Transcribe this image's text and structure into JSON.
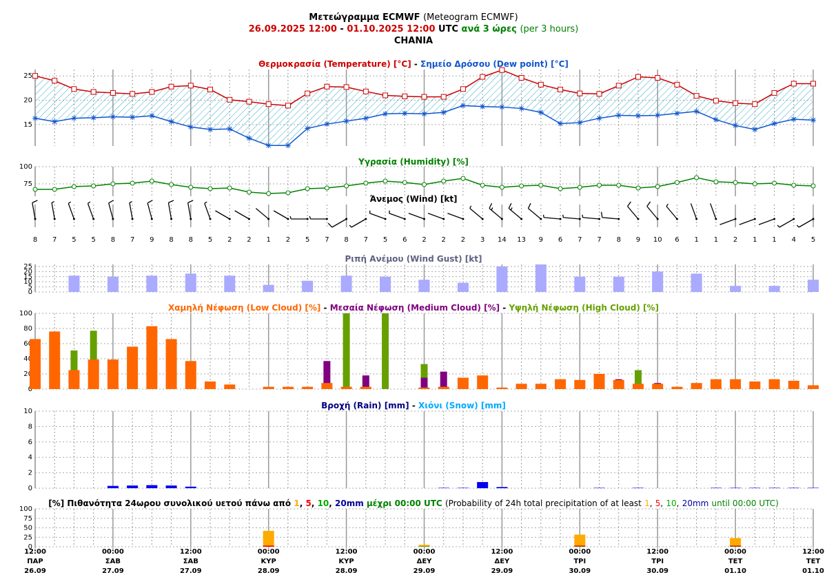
{
  "header": {
    "title": [
      "Μετεώγραμμα ECMWF",
      "(Meteogram ECMWF)"
    ],
    "period": [
      "26.09.2025 12:00",
      "-",
      "01.10.2025 12:00",
      "UTC",
      "ανά 3 ώρες",
      "(per 3 hours)"
    ],
    "location": "CHANIA"
  },
  "time_axis": {
    "xlim": [
      0,
      120
    ],
    "x": [
      0,
      3,
      6,
      9,
      12,
      15,
      18,
      21,
      24,
      27,
      30,
      33,
      36,
      39,
      42,
      45,
      48,
      51,
      54,
      57,
      60,
      63,
      66,
      69,
      72,
      75,
      78,
      81,
      84,
      87,
      90,
      93,
      96,
      99,
      102,
      105,
      108,
      111,
      114,
      117,
      120
    ],
    "xticks": [
      {
        "value": 0,
        "label": [
          "12:00",
          "ΠΑΡ",
          "26.09"
        ]
      },
      {
        "value": 12,
        "label": [
          "00:00",
          "ΣΑΒ",
          "27.09"
        ]
      },
      {
        "value": 24,
        "label": [
          "12:00",
          "ΣΑΒ",
          "27.09"
        ]
      },
      {
        "value": 36,
        "label": [
          "00:00",
          "ΚΥΡ",
          "28.09"
        ]
      },
      {
        "value": 48,
        "label": [
          "12:00",
          "ΚΥΡ",
          "28.09"
        ]
      },
      {
        "value": 60,
        "label": [
          "00:00",
          "ΔΕΥ",
          "29.09"
        ]
      },
      {
        "value": 72,
        "label": [
          "12:00",
          "ΔΕΥ",
          "29.09"
        ]
      },
      {
        "value": 84,
        "label": [
          "00:00",
          "ΤΡΙ",
          "30.09"
        ]
      },
      {
        "value": 96,
        "label": [
          "12:00",
          "ΤΡΙ",
          "30.09"
        ]
      },
      {
        "value": 108,
        "label": [
          "00:00",
          "ΤΕΤ",
          "01.10"
        ]
      },
      {
        "value": 120,
        "label": [
          "12:00",
          "ΤΕΤ",
          "01.10"
        ]
      }
    ]
  },
  "chart_data": [
    {
      "type": "line",
      "title": [
        "Θερμοκρασία (Temperature) [°C]",
        "-",
        "Σημείο Δρόσου (Dew point) [°C]"
      ],
      "ylim": [
        10.6,
        26.3
      ],
      "yticks": [
        15,
        20,
        25
      ],
      "fill_between": true,
      "series": [
        {
          "color": "#1155cc",
          "marker": "star",
          "values": [
            16.3,
            15.6,
            16.3,
            16.4,
            16.6,
            16.5,
            16.8,
            15.6,
            14.5,
            14,
            14.1,
            12.2,
            10.7,
            10.7,
            14.2,
            15.1,
            15.7,
            16.3,
            17.2,
            17.3,
            17.2,
            17.5,
            18.9,
            18.7,
            18.6,
            18.3,
            17.5,
            15.2,
            15.4,
            16.3,
            16.9,
            16.8,
            16.9,
            17.3,
            17.7,
            16,
            14.8,
            14,
            15.2,
            16.1,
            15.9
          ]
        },
        {
          "color": "#cc0000",
          "marker": "square",
          "values": [
            25,
            24,
            22.3,
            21.7,
            21.5,
            21.3,
            21.7,
            22.8,
            23,
            22.2,
            20.1,
            19.7,
            19.2,
            18.9,
            21.4,
            22.8,
            22.7,
            21.8,
            21,
            20.8,
            20.7,
            20.7,
            22.3,
            24.8,
            26.2,
            24.6,
            23.2,
            22.2,
            21.4,
            21.3,
            23,
            24.8,
            24.6,
            23.2,
            20.9,
            19.9,
            19.4,
            19.2,
            21.5,
            23.4,
            23.4
          ]
        }
      ]
    },
    {
      "type": "line",
      "title": [
        "Υγρασία (Humidity) [%]"
      ],
      "ylim": [
        57,
        100
      ],
      "yticks": [
        75,
        100
      ],
      "series": [
        {
          "color": "#008000",
          "marker": "circle",
          "values": [
            67,
            67,
            71,
            72,
            75,
            76,
            79,
            74,
            70,
            68,
            69,
            63,
            61,
            62,
            68,
            69,
            72,
            76,
            79,
            77,
            74,
            79,
            83,
            73,
            70,
            72,
            73,
            68,
            70,
            73,
            73,
            69,
            71,
            77,
            84,
            78,
            77,
            75,
            76,
            73,
            72
          ]
        }
      ]
    },
    {
      "type": "barbs",
      "title": [
        "Άνεμος (Wind) [kt]"
      ],
      "color": "#000000",
      "values": [
        8,
        7,
        5,
        5,
        8,
        7,
        9,
        8,
        8,
        5,
        2,
        2,
        1,
        2,
        5,
        7,
        8,
        7,
        5,
        6,
        2,
        2,
        2,
        3,
        14,
        13,
        9,
        6,
        7,
        7,
        8,
        9,
        10,
        6,
        1,
        1,
        2,
        1,
        1,
        4,
        5
      ],
      "directions": [
        350,
        350,
        340,
        340,
        345,
        350,
        345,
        350,
        350,
        340,
        300,
        300,
        310,
        300,
        270,
        270,
        240,
        240,
        290,
        290,
        290,
        290,
        290,
        310,
        310,
        310,
        310,
        275,
        275,
        275,
        275,
        320,
        320,
        320,
        340,
        340,
        250,
        250,
        250,
        240,
        240
      ]
    },
    {
      "type": "bar",
      "title": [
        "Ριπή Ανέμου (Wind Gust) [kt]"
      ],
      "ylim": [
        0,
        27
      ],
      "yticks": [
        0,
        5,
        10,
        15,
        20,
        25
      ],
      "color": "#aaaaff",
      "x": [
        6,
        12,
        18,
        24,
        30,
        36,
        42,
        48,
        54,
        60,
        66,
        72,
        78,
        84,
        90,
        96,
        102,
        108,
        114,
        120
      ],
      "values": [
        16,
        15,
        16,
        18,
        16,
        7,
        11,
        16,
        15,
        12,
        9,
        25,
        27,
        15,
        15,
        20,
        18,
        6,
        6,
        12
      ]
    },
    {
      "type": "bar",
      "title": [
        "Χαμηλή Νέφωση (Low Cloud) [%]",
        "-",
        "Μεσαία Νέφωση (Medium Cloud) [%]",
        "-",
        "Υψηλή Νέφωση (High Cloud) [%]"
      ],
      "ylim": [
        0,
        100
      ],
      "yticks": [
        0,
        20,
        40,
        60,
        80,
        100
      ],
      "series": [
        {
          "color": "#66a000",
          "values": [
            0,
            0,
            51,
            77,
            0,
            0,
            0,
            0,
            0,
            0,
            0,
            0,
            0,
            0,
            0,
            0,
            100,
            0,
            100,
            0,
            33,
            0,
            0,
            0,
            0,
            0,
            0,
            0,
            0,
            0,
            0,
            25,
            0,
            0,
            0,
            0,
            0,
            0,
            0,
            0,
            0
          ]
        },
        {
          "color": "#800080",
          "values": [
            0,
            0,
            0,
            0,
            0,
            0,
            0,
            0,
            0,
            0,
            0,
            0,
            0,
            0,
            0,
            37,
            0,
            18,
            0,
            0,
            15,
            23,
            0,
            0,
            0,
            0,
            0,
            0,
            0,
            0,
            13,
            0,
            8,
            0,
            0,
            0,
            0,
            0,
            0,
            0,
            0
          ]
        },
        {
          "color": "#ff6600",
          "values": [
            66,
            76,
            25,
            39,
            39,
            56,
            83,
            66,
            37,
            10,
            6,
            0,
            3,
            3,
            3,
            8,
            3,
            3,
            0,
            0,
            2,
            3,
            15,
            18,
            2,
            7,
            7,
            13,
            12,
            20,
            12,
            7,
            7,
            3,
            8,
            13,
            13,
            10,
            13,
            11,
            5
          ]
        }
      ]
    },
    {
      "type": "bar",
      "title": [
        "Βροχή (Rain) [mm]",
        "-",
        "Χιόνι (Snow) [mm]"
      ],
      "ylim": [
        0,
        10
      ],
      "yticks": [
        0,
        2,
        4,
        6,
        8,
        10
      ],
      "series": [
        {
          "color": "#0000ee",
          "values": [
            0,
            0,
            0,
            0,
            0.3,
            0.35,
            0.4,
            0.35,
            0.2,
            0,
            0,
            0,
            0,
            0,
            0,
            0,
            0,
            0,
            0,
            0,
            0,
            0.05,
            0.05,
            0.8,
            0.15,
            0,
            0,
            0,
            0,
            0.05,
            0,
            0.05,
            0,
            0,
            0,
            0.05,
            0.05,
            0.05,
            0.05,
            0.05,
            0.05
          ]
        },
        {
          "color": "#00aaff",
          "values": [
            0,
            0,
            0,
            0,
            0,
            0,
            0,
            0,
            0,
            0,
            0,
            0,
            0,
            0,
            0,
            0,
            0,
            0,
            0,
            0,
            0,
            0,
            0,
            0,
            0,
            0,
            0,
            0,
            0,
            0,
            0,
            0,
            0,
            0,
            0,
            0,
            0,
            0,
            0,
            0,
            0
          ]
        }
      ]
    },
    {
      "type": "bar",
      "title": [
        "[%] Πιθανότητα 24ωρου συνολικού υετού πάνω από",
        "1",
        ",",
        "5",
        ",",
        "10",
        ",",
        "20mm",
        "μέχρι 00:00 UTC",
        "(Probability of 24h total precipitation of at least",
        "1",
        ",",
        "5",
        ",",
        "10",
        ",",
        "20mm",
        "until 00:00 UTC)"
      ],
      "ylim": [
        0,
        100
      ],
      "yticks": [
        0,
        25,
        50,
        75,
        100
      ],
      "x": [
        36,
        60,
        84,
        108
      ],
      "series": [
        {
          "color": "#ffaa00",
          "values": [
            42,
            5,
            32,
            23
          ]
        },
        {
          "color": "#ff0000",
          "values": [
            3,
            1,
            3,
            3
          ]
        },
        {
          "color": "#00aa00",
          "values": [
            0,
            1,
            1,
            1
          ]
        },
        {
          "color": "#000099",
          "values": [
            0,
            0,
            0,
            0
          ]
        }
      ]
    }
  ]
}
